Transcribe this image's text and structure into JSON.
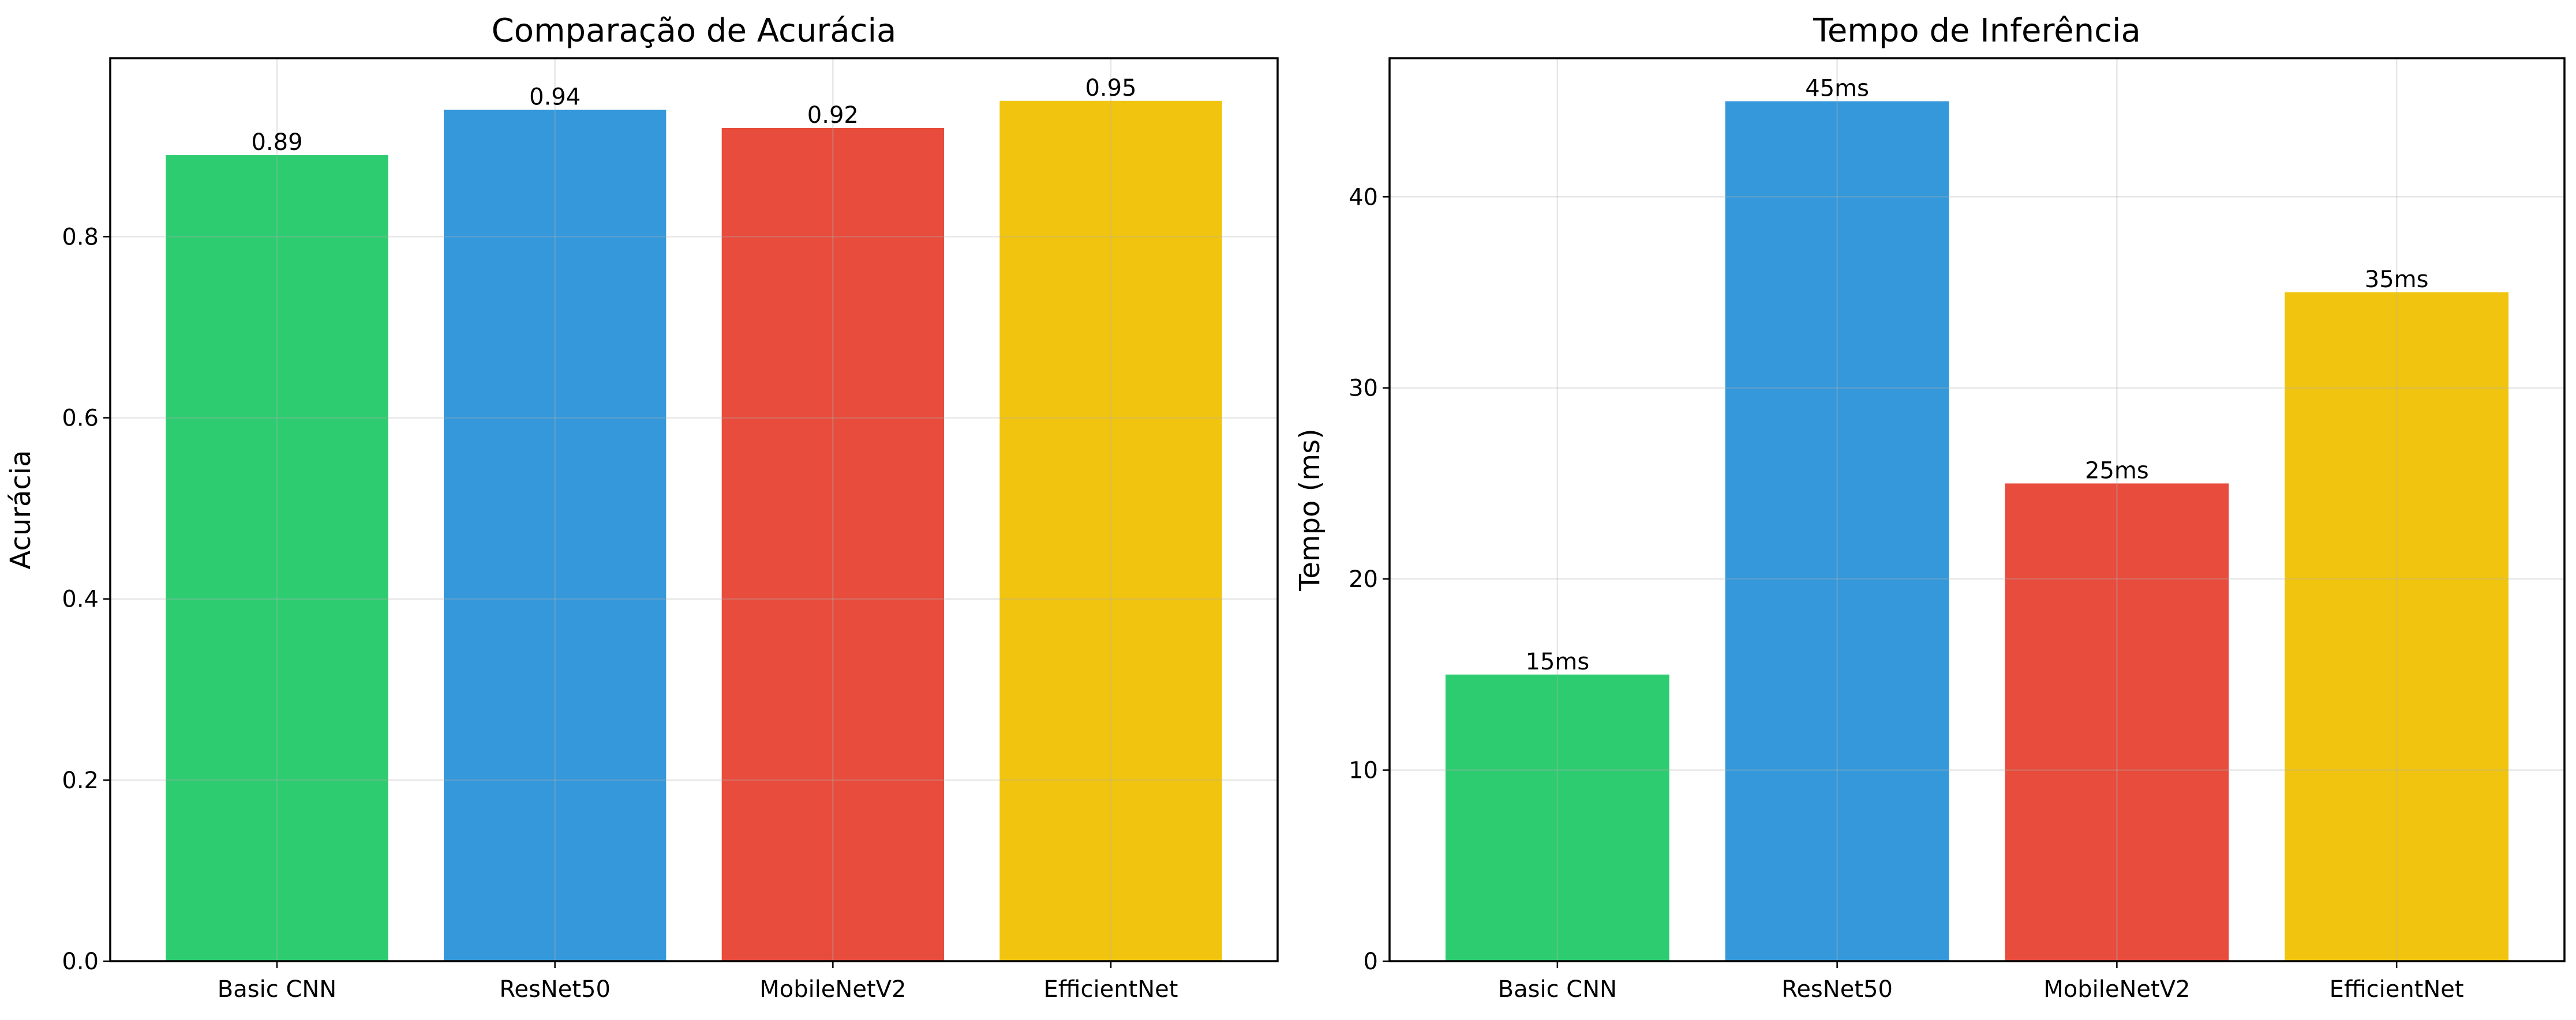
{
  "chart_data": [
    {
      "type": "bar",
      "title": "Comparação de Acurácia",
      "xlabel": "",
      "ylabel": "Acurácia",
      "categories": [
        "Basic CNN",
        "ResNet50",
        "MobileNetV2",
        "EfficientNet"
      ],
      "values": [
        0.89,
        0.94,
        0.92,
        0.95
      ],
      "data_labels": [
        "0.89",
        "0.94",
        "0.92",
        "0.95"
      ],
      "colors": [
        "#2ecc71",
        "#3498db",
        "#e74c3c",
        "#f1c40f"
      ],
      "ylim": [
        0,
        0.997
      ],
      "yticks": [
        0.0,
        0.2,
        0.4,
        0.6,
        0.8
      ],
      "ytick_labels": [
        "0.0",
        "0.2",
        "0.4",
        "0.6",
        "0.8"
      ],
      "grid": true,
      "legend": "none"
    },
    {
      "type": "bar",
      "title": "Tempo de Inferência",
      "xlabel": "",
      "ylabel": "Tempo (ms)",
      "categories": [
        "Basic CNN",
        "ResNet50",
        "MobileNetV2",
        "EfficientNet"
      ],
      "values": [
        15,
        45,
        25,
        35
      ],
      "data_labels": [
        "15ms",
        "45ms",
        "25ms",
        "35ms"
      ],
      "colors": [
        "#2ecc71",
        "#3498db",
        "#e74c3c",
        "#f1c40f"
      ],
      "ylim": [
        0,
        47.25
      ],
      "yticks": [
        0,
        10,
        20,
        30,
        40
      ],
      "ytick_labels": [
        "0",
        "10",
        "20",
        "30",
        "40"
      ],
      "grid": true,
      "legend": "none"
    }
  ]
}
